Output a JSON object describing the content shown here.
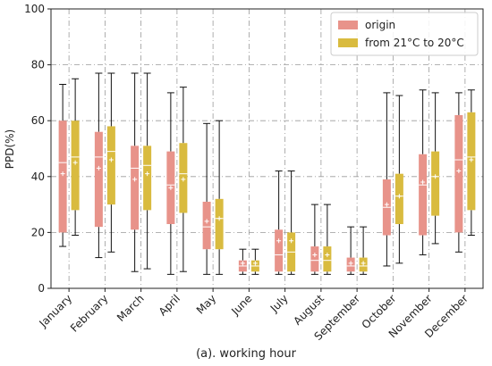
{
  "caption": "(a). working hour",
  "colors": {
    "origin": "#e8938a",
    "shifted": "#d9bb3f",
    "grid": "#9a9a9a"
  },
  "chart_data": {
    "type": "box",
    "title": "",
    "xlabel": "",
    "ylabel": "PPD(%)",
    "ylim": [
      0,
      100
    ],
    "yticks": [
      0,
      20,
      40,
      60,
      80,
      100
    ],
    "grid": true,
    "grid_style": "dash-dot",
    "legend_position": "top-right",
    "categories": [
      "January",
      "February",
      "March",
      "April",
      "May",
      "June",
      "July",
      "August",
      "September",
      "October",
      "November",
      "December"
    ],
    "series": [
      {
        "name": "origin",
        "color": "#e8938a",
        "boxes": [
          {
            "min": 15,
            "q1": 20,
            "median": 45,
            "q3": 60,
            "max": 73,
            "mean": 41
          },
          {
            "min": 11,
            "q1": 22,
            "median": 47,
            "q3": 56,
            "max": 77,
            "mean": 43
          },
          {
            "min": 6,
            "q1": 21,
            "median": 43,
            "q3": 51,
            "max": 77,
            "mean": 39
          },
          {
            "min": 5,
            "q1": 23,
            "median": 37,
            "q3": 49,
            "max": 70,
            "mean": 36
          },
          {
            "min": 5,
            "q1": 14,
            "median": 22,
            "q3": 31,
            "max": 59,
            "mean": 24
          },
          {
            "min": 5,
            "q1": 6,
            "median": 8,
            "q3": 10,
            "max": 14,
            "mean": 9
          },
          {
            "min": 5,
            "q1": 6,
            "median": 12,
            "q3": 21,
            "max": 42,
            "mean": 17
          },
          {
            "min": 5,
            "q1": 6,
            "median": 10,
            "q3": 15,
            "max": 30,
            "mean": 12
          },
          {
            "min": 5,
            "q1": 6,
            "median": 8,
            "q3": 11,
            "max": 22,
            "mean": 9
          },
          {
            "min": 8,
            "q1": 19,
            "median": 29,
            "q3": 39,
            "max": 70,
            "mean": 30
          },
          {
            "min": 12,
            "q1": 19,
            "median": 37,
            "q3": 48,
            "max": 71,
            "mean": 38
          },
          {
            "min": 13,
            "q1": 20,
            "median": 46,
            "q3": 62,
            "max": 70,
            "mean": 42
          }
        ]
      },
      {
        "name": "from 21°C to 20°C",
        "color": "#d9bb3f",
        "boxes": [
          {
            "min": 19,
            "q1": 28,
            "median": 47,
            "q3": 60,
            "max": 75,
            "mean": 45
          },
          {
            "min": 13,
            "q1": 30,
            "median": 49,
            "q3": 58,
            "max": 77,
            "mean": 46
          },
          {
            "min": 7,
            "q1": 28,
            "median": 44,
            "q3": 51,
            "max": 77,
            "mean": 41
          },
          {
            "min": 6,
            "q1": 27,
            "median": 41,
            "q3": 52,
            "max": 72,
            "mean": 39
          },
          {
            "min": 5,
            "q1": 14,
            "median": 25,
            "q3": 32,
            "max": 60,
            "mean": 25
          },
          {
            "min": 5,
            "q1": 6,
            "median": 8,
            "q3": 10,
            "max": 14,
            "mean": 9
          },
          {
            "min": 5,
            "q1": 6,
            "median": 13,
            "q3": 20,
            "max": 42,
            "mean": 17
          },
          {
            "min": 5,
            "q1": 6,
            "median": 10,
            "q3": 15,
            "max": 30,
            "mean": 12
          },
          {
            "min": 5,
            "q1": 6,
            "median": 8,
            "q3": 11,
            "max": 22,
            "mean": 9
          },
          {
            "min": 9,
            "q1": 23,
            "median": 33,
            "q3": 41,
            "max": 69,
            "mean": 33
          },
          {
            "min": 16,
            "q1": 26,
            "median": 40,
            "q3": 49,
            "max": 70,
            "mean": 40
          },
          {
            "min": 19,
            "q1": 28,
            "median": 47,
            "q3": 63,
            "max": 71,
            "mean": 46
          }
        ]
      }
    ]
  }
}
